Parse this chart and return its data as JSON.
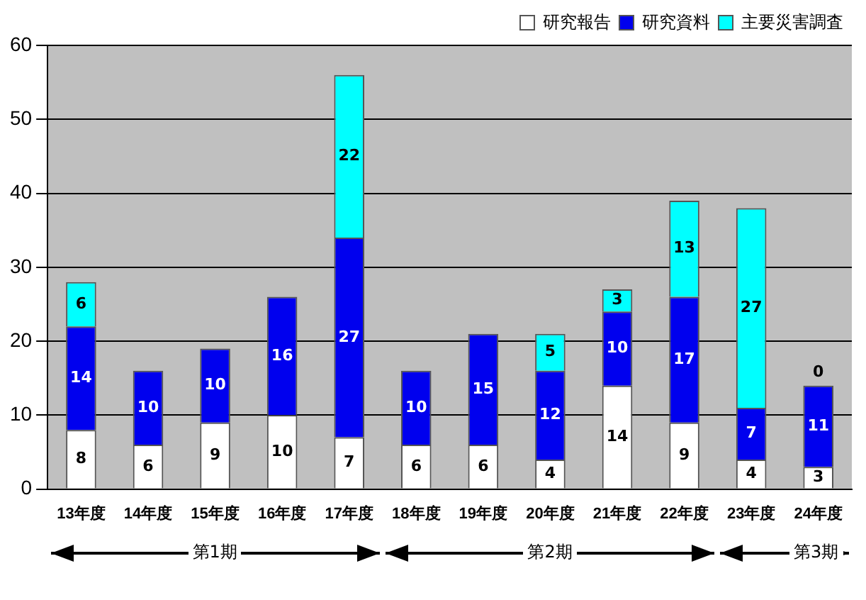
{
  "chart_data": {
    "type": "bar",
    "stacked": true,
    "categories": [
      "13年度",
      "14年度",
      "15年度",
      "16年度",
      "17年度",
      "18年度",
      "19年度",
      "20年度",
      "21年度",
      "22年度",
      "23年度",
      "24年度"
    ],
    "series": [
      {
        "name": "研究報告",
        "color": "#ffffff",
        "values": [
          8,
          6,
          9,
          10,
          7,
          6,
          6,
          4,
          14,
          9,
          4,
          3
        ],
        "value_labels": [
          "8",
          "6",
          "9",
          "10",
          "7",
          "6",
          "6",
          "4",
          "14",
          "9",
          "4",
          "3"
        ]
      },
      {
        "name": "研究資料",
        "color": "#0000ee",
        "values": [
          14,
          10,
          10,
          16,
          27,
          10,
          15,
          12,
          10,
          17,
          7,
          11
        ],
        "value_labels": [
          "14",
          "10",
          "10",
          "16",
          "27",
          "10",
          "15",
          "12",
          "10",
          "17",
          "7",
          "11"
        ]
      },
      {
        "name": "主要災害調査",
        "color": "#00ffff",
        "values": [
          6,
          0,
          0,
          0,
          22,
          0,
          0,
          5,
          3,
          13,
          27,
          0
        ],
        "value_labels": [
          "6",
          null,
          null,
          null,
          "22",
          null,
          null,
          "5",
          "3",
          "13",
          "27",
          "0"
        ]
      }
    ],
    "ylim": [
      0,
      60
    ],
    "yticks": [
      0,
      10,
      20,
      30,
      40,
      50,
      60
    ],
    "grid": "y",
    "legend": "top right",
    "annotations": [
      "第1期",
      "第2期",
      "第3期"
    ]
  }
}
